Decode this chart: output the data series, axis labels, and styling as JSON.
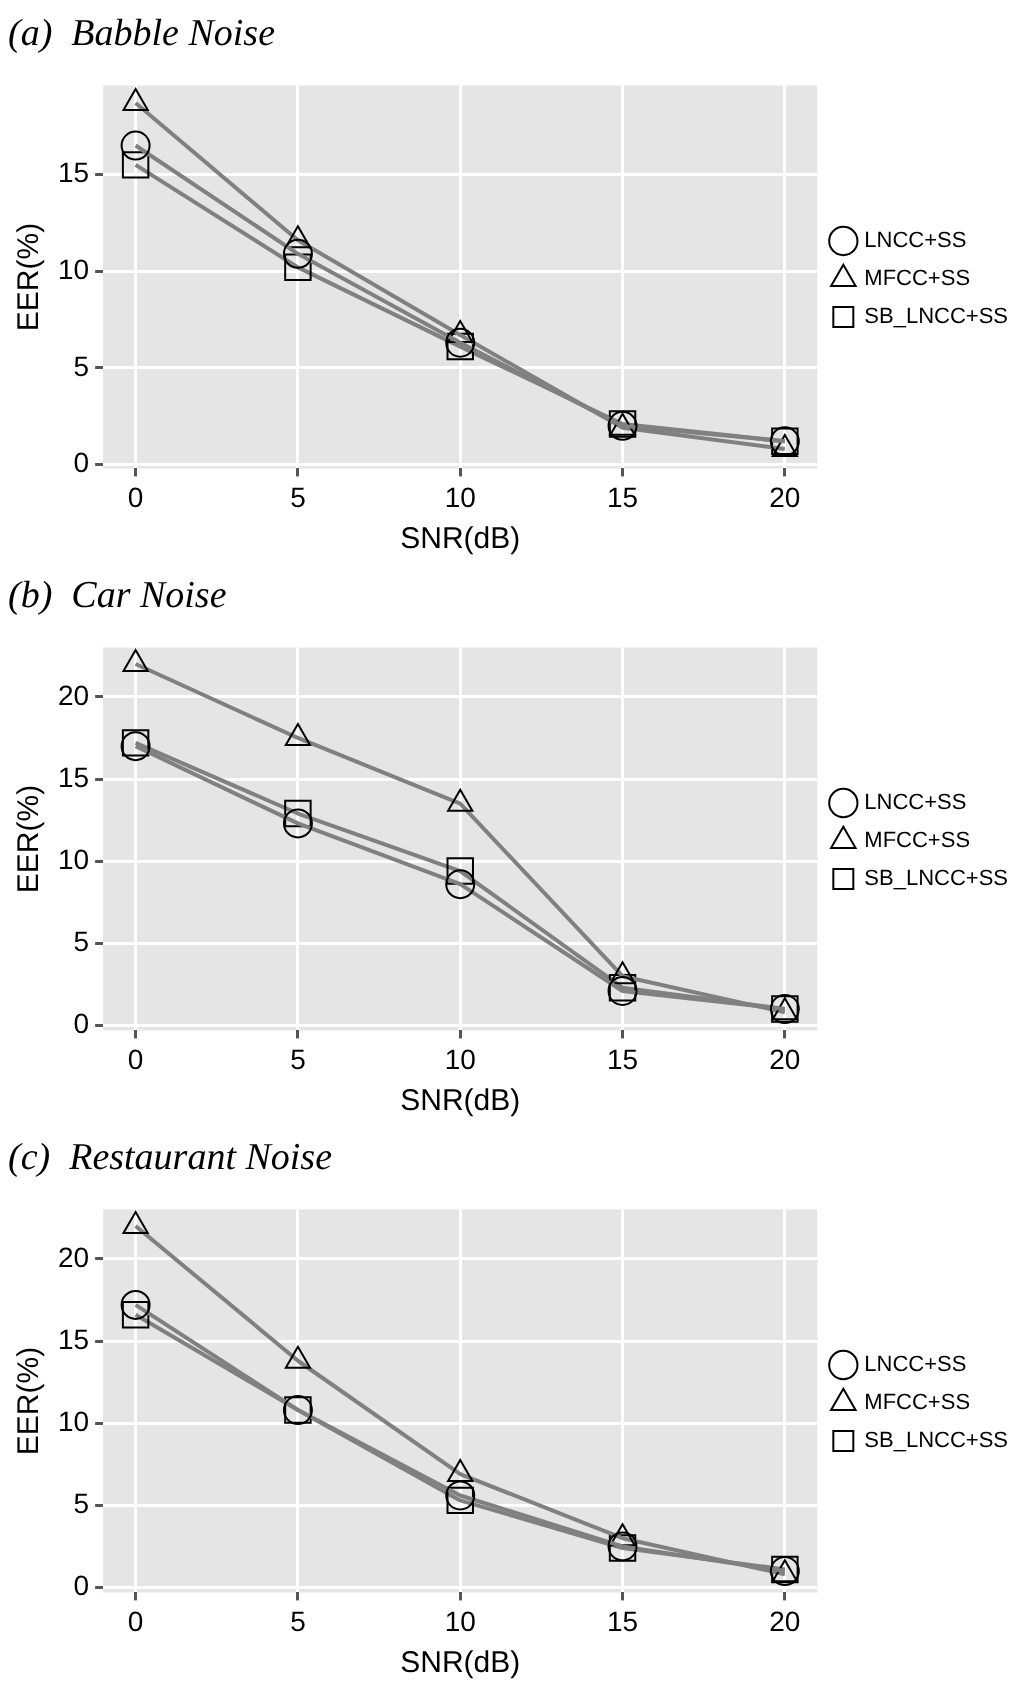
{
  "chart_data": [
    {
      "type": "line",
      "title": "(a)  Babble Noise",
      "xlabel": "SNR(dB)",
      "ylabel": "EER(%)",
      "x": [
        0,
        5,
        10,
        15,
        20
      ],
      "xlim": [
        -1,
        21
      ],
      "xticks": [
        0,
        5,
        10,
        15,
        20
      ],
      "ylim": [
        -0.2,
        19.6
      ],
      "yticks": [
        0,
        5,
        10,
        15
      ],
      "grid": true,
      "legend": "right",
      "line_style": "solid",
      "series": [
        {
          "name": "LNCC+SS",
          "color": "#808080",
          "marker": "circle",
          "values": [
            16.5,
            10.9,
            6.3,
            2.0,
            1.2
          ]
        },
        {
          "name": "MFCC+SS",
          "color": "#808080",
          "marker": "triangle",
          "values": [
            18.7,
            11.6,
            6.7,
            1.9,
            0.8
          ]
        },
        {
          "name": "SB_LNCC+SS",
          "color": "#808080",
          "marker": "square",
          "values": [
            15.5,
            10.2,
            6.1,
            2.1,
            1.2
          ]
        }
      ]
    },
    {
      "type": "line",
      "title": "(b)  Car Noise",
      "xlabel": "SNR(dB)",
      "ylabel": "EER(%)",
      "x": [
        0,
        5,
        10,
        15,
        20
      ],
      "xlim": [
        -1,
        21
      ],
      "xticks": [
        0,
        5,
        10,
        15,
        20
      ],
      "ylim": [
        -0.3,
        23
      ],
      "yticks": [
        0,
        5,
        10,
        15,
        20
      ],
      "grid": true,
      "legend": "right",
      "line_style": "solid",
      "series": [
        {
          "name": "LNCC+SS",
          "color": "#808080",
          "marker": "circle",
          "values": [
            17.0,
            12.3,
            8.6,
            2.1,
            1.0
          ]
        },
        {
          "name": "MFCC+SS",
          "color": "#808080",
          "marker": "triangle",
          "values": [
            22.0,
            17.5,
            13.5,
            3.0,
            0.8
          ]
        },
        {
          "name": "SB_LNCC+SS",
          "color": "#808080",
          "marker": "square",
          "values": [
            17.2,
            12.9,
            9.4,
            2.3,
            1.0
          ]
        }
      ]
    },
    {
      "type": "line",
      "title": "(c)  Restaurant Noise",
      "xlabel": "SNR(dB)",
      "ylabel": "EER(%)",
      "x": [
        0,
        5,
        10,
        15,
        20
      ],
      "xlim": [
        -1,
        21
      ],
      "xticks": [
        0,
        5,
        10,
        15,
        20
      ],
      "ylim": [
        -0.3,
        23
      ],
      "yticks": [
        0,
        5,
        10,
        15,
        20
      ],
      "grid": true,
      "legend": "right",
      "line_style": "solid",
      "series": [
        {
          "name": "LNCC+SS",
          "color": "#808080",
          "marker": "circle",
          "values": [
            17.2,
            10.8,
            5.6,
            2.5,
            1.0
          ]
        },
        {
          "name": "MFCC+SS",
          "color": "#808080",
          "marker": "triangle",
          "values": [
            22.0,
            13.8,
            6.9,
            3.0,
            0.8
          ]
        },
        {
          "name": "SB_LNCC+SS",
          "color": "#808080",
          "marker": "square",
          "values": [
            16.6,
            10.8,
            5.3,
            2.4,
            1.1
          ]
        }
      ]
    }
  ]
}
